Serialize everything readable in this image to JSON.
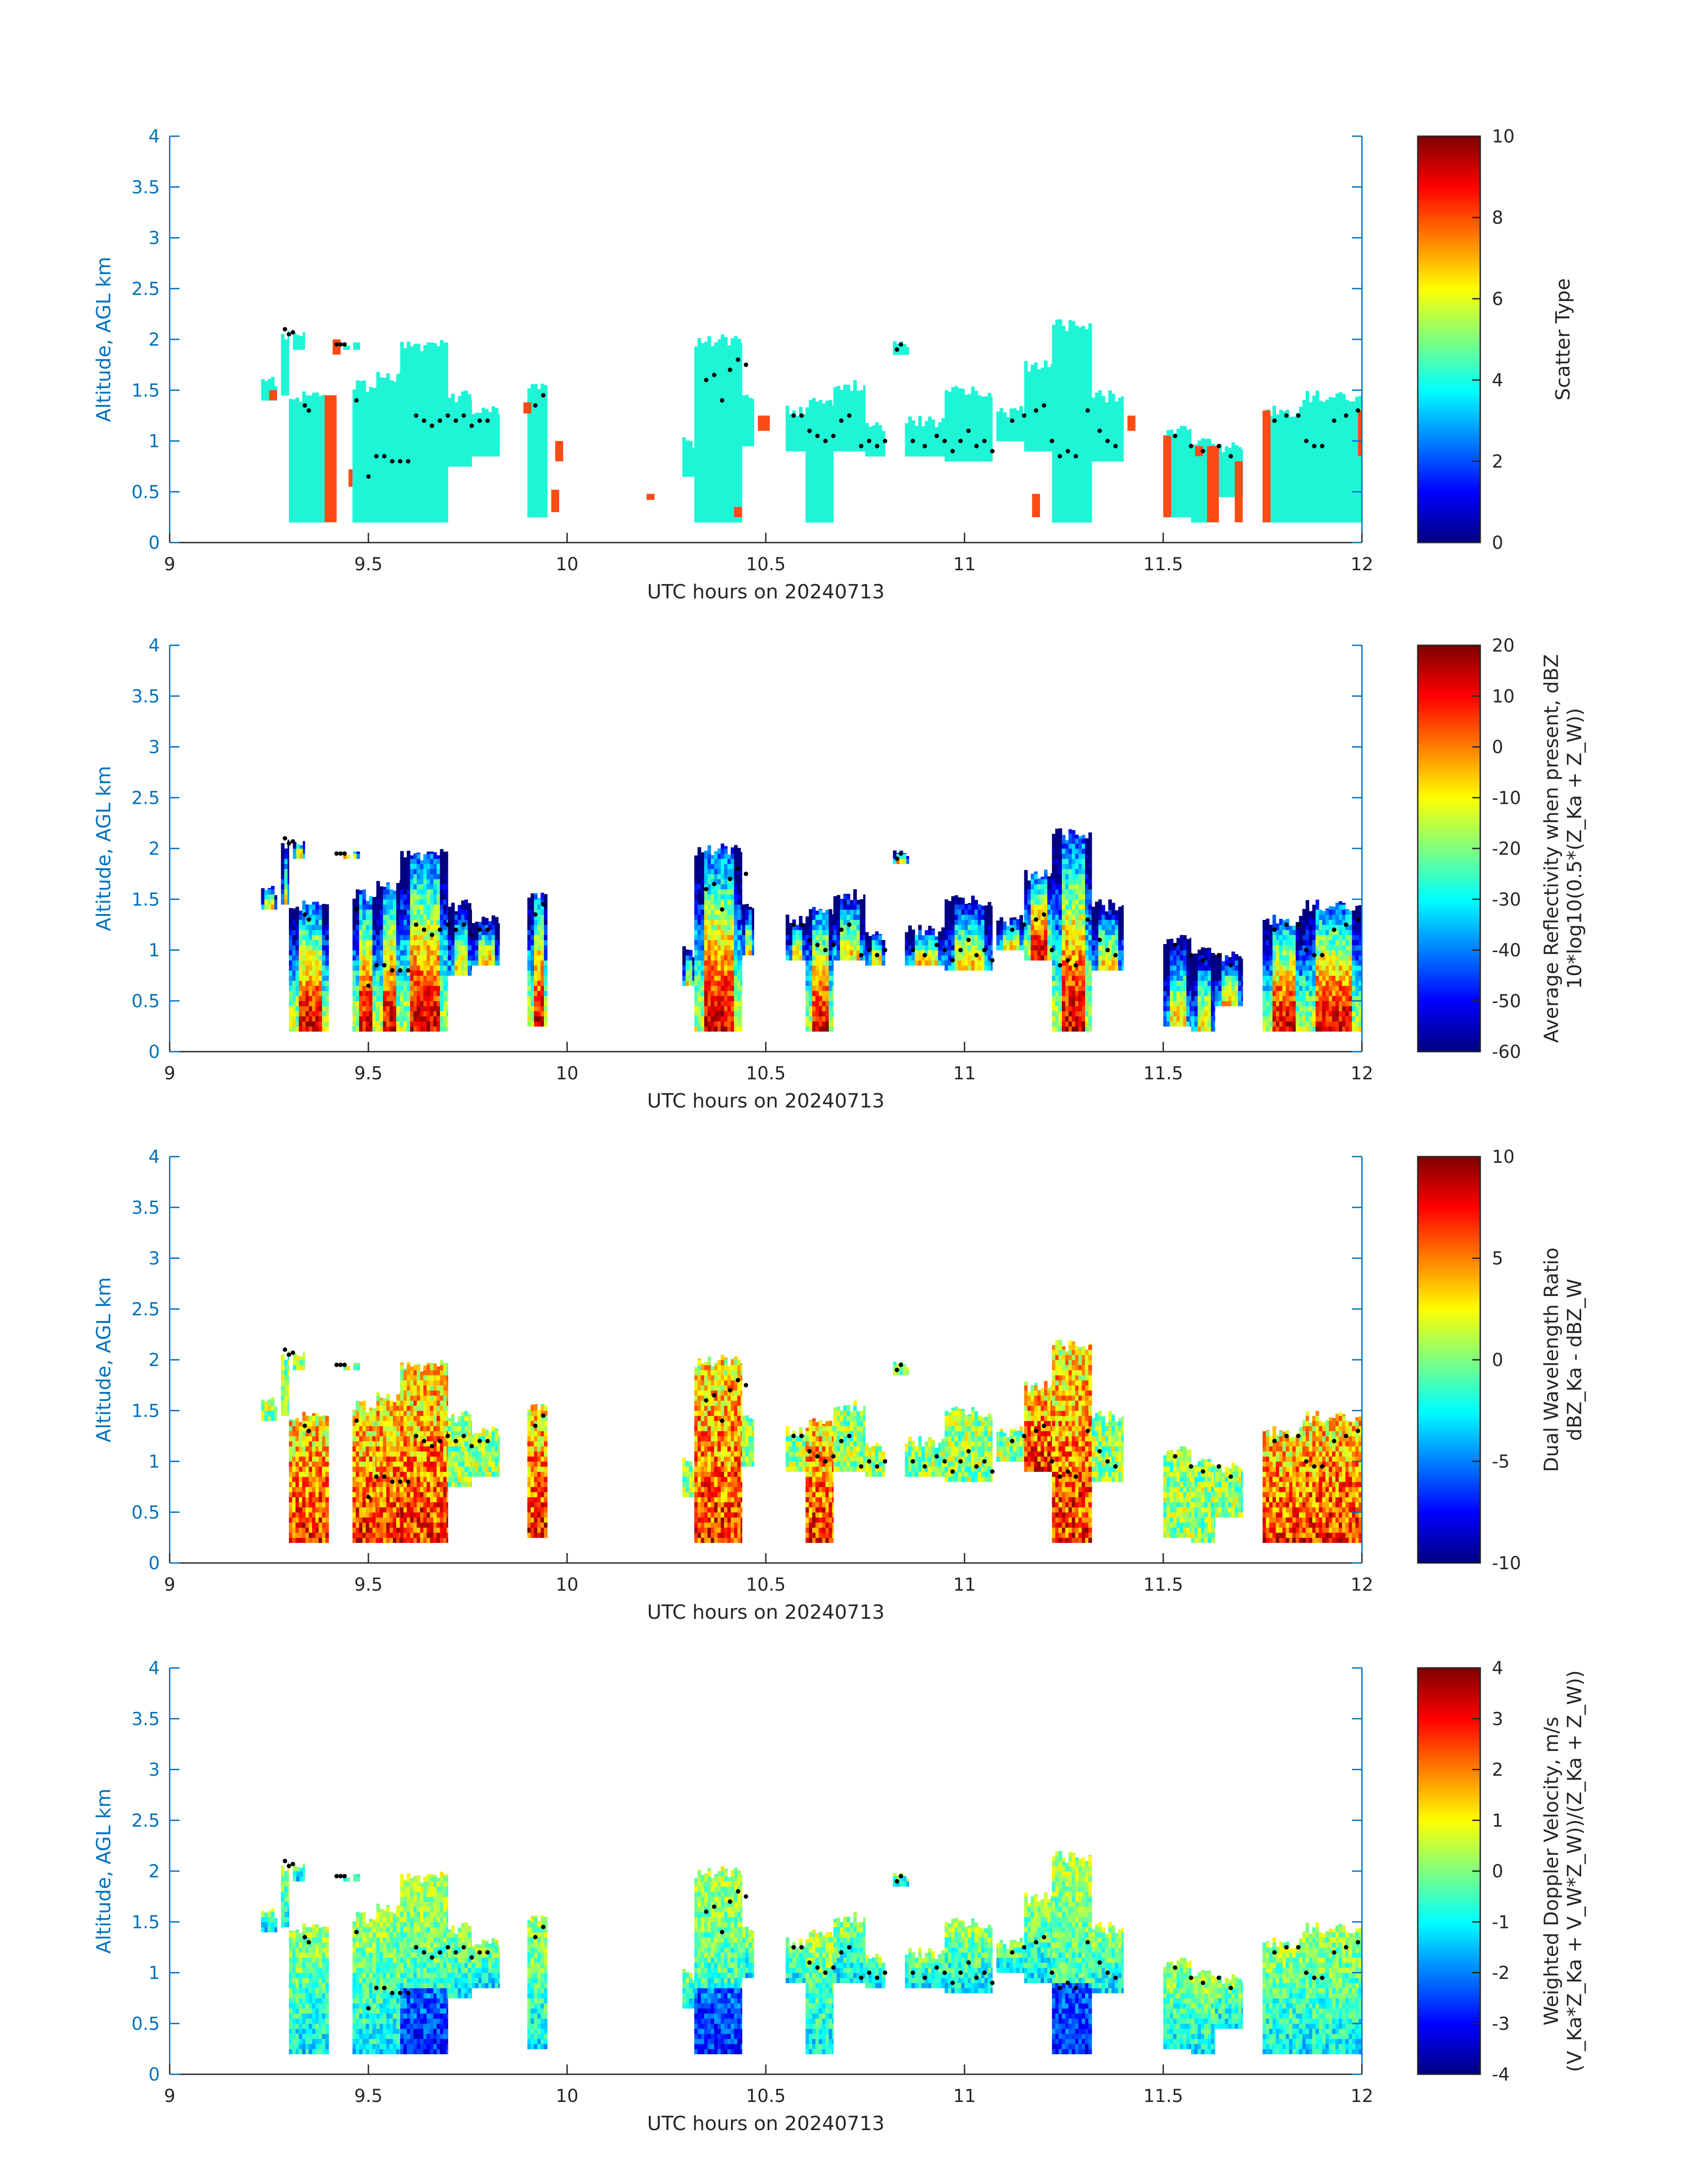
{
  "colors": {
    "axis": "#0072BD",
    "text": "#262626",
    "track": "#000000",
    "scatter_cloud": "#1ef5d6",
    "scatter_precip": "#ff4a14"
  },
  "chart_data": [
    {
      "type": "heatmap",
      "title": "",
      "xlabel": "UTC hours on 20240713",
      "ylabel": "Altitude, AGL km",
      "xlim": [
        9,
        12
      ],
      "ylim": [
        0,
        4
      ],
      "x_ticks": [
        9,
        9.5,
        10,
        10.5,
        11,
        11.5,
        12
      ],
      "x_tick_labels": [
        "9",
        "9.5",
        "10",
        "10.5",
        "11",
        "11.5",
        "12"
      ],
      "y_ticks": [
        0,
        0.5,
        1,
        1.5,
        2,
        2.5,
        3,
        3.5,
        4
      ],
      "y_tick_labels": [
        "0",
        "0.5",
        "1",
        "1.5",
        "2",
        "2.5",
        "3",
        "3.5",
        "4"
      ],
      "colorbar": {
        "label_lines": [
          "Scatter Type"
        ],
        "range": [
          0,
          10
        ],
        "ticks": [
          0,
          2,
          4,
          6,
          8,
          10
        ],
        "tick_labels": [
          "0",
          "2",
          "4",
          "6",
          "8",
          "10"
        ],
        "colormap": "jet"
      },
      "field": "scatter_type",
      "grid": false
    },
    {
      "type": "heatmap",
      "title": "",
      "xlabel": "UTC hours on 20240713",
      "ylabel": "Altitude, AGL km",
      "xlim": [
        9,
        12
      ],
      "ylim": [
        0,
        4
      ],
      "x_ticks": [
        9,
        9.5,
        10,
        10.5,
        11,
        11.5,
        12
      ],
      "x_tick_labels": [
        "9",
        "9.5",
        "10",
        "10.5",
        "11",
        "11.5",
        "12"
      ],
      "y_ticks": [
        0,
        0.5,
        1,
        1.5,
        2,
        2.5,
        3,
        3.5,
        4
      ],
      "y_tick_labels": [
        "0",
        "0.5",
        "1",
        "1.5",
        "2",
        "2.5",
        "3",
        "3.5",
        "4"
      ],
      "colorbar": {
        "label_lines": [
          "Average Reflectivity when present, dBZ",
          "10*log10(0.5*(Z_Ka + Z_W))"
        ],
        "range": [
          -60,
          20
        ],
        "ticks": [
          -60,
          -50,
          -40,
          -30,
          -20,
          -10,
          0,
          10,
          20
        ],
        "tick_labels": [
          "-60",
          "-50",
          "-40",
          "-30",
          "-20",
          "-10",
          "0",
          "10",
          "20"
        ],
        "colormap": "jet"
      },
      "field": "reflectivity",
      "grid": false
    },
    {
      "type": "heatmap",
      "title": "",
      "xlabel": "UTC hours on 20240713",
      "ylabel": "Altitude, AGL km",
      "xlim": [
        9,
        12
      ],
      "ylim": [
        0,
        4
      ],
      "x_ticks": [
        9,
        9.5,
        10,
        10.5,
        11,
        11.5,
        12
      ],
      "x_tick_labels": [
        "9",
        "9.5",
        "10",
        "10.5",
        "11",
        "11.5",
        "12"
      ],
      "y_ticks": [
        0,
        0.5,
        1,
        1.5,
        2,
        2.5,
        3,
        3.5,
        4
      ],
      "y_tick_labels": [
        "0",
        "0.5",
        "1",
        "1.5",
        "2",
        "2.5",
        "3",
        "3.5",
        "4"
      ],
      "colorbar": {
        "label_lines": [
          "Dual Wavelength Ratio",
          "dBZ_Ka - dBZ_W"
        ],
        "range": [
          -10,
          10
        ],
        "ticks": [
          -10,
          -5,
          0,
          5,
          10
        ],
        "tick_labels": [
          "-10",
          "-5",
          "0",
          "5",
          "10"
        ],
        "colormap": "jet"
      },
      "field": "dwr",
      "grid": false
    },
    {
      "type": "heatmap",
      "title": "",
      "xlabel": "UTC hours on 20240713",
      "ylabel": "Altitude, AGL km",
      "xlim": [
        9,
        12
      ],
      "ylim": [
        0,
        4
      ],
      "x_ticks": [
        9,
        9.5,
        10,
        10.5,
        11,
        11.5,
        12
      ],
      "x_tick_labels": [
        "9",
        "9.5",
        "10",
        "10.5",
        "11",
        "11.5",
        "12"
      ],
      "y_ticks": [
        0,
        0.5,
        1,
        1.5,
        2,
        2.5,
        3,
        3.5,
        4
      ],
      "y_tick_labels": [
        "0",
        "0.5",
        "1",
        "1.5",
        "2",
        "2.5",
        "3",
        "3.5",
        "4"
      ],
      "colorbar": {
        "label_lines": [
          "Weighted Doppler Velocity, m/s",
          "(V_Ka*Z_Ka + V_W*Z_W))/(Z_Ka + Z_W))"
        ],
        "range": [
          -4,
          4
        ],
        "ticks": [
          -4,
          -3,
          -2,
          -1,
          0,
          1,
          2,
          3,
          4
        ],
        "tick_labels": [
          "-4",
          "-3",
          "-2",
          "-1",
          "0",
          "1",
          "2",
          "3",
          "4"
        ],
        "colormap": "jet"
      },
      "field": "doppler",
      "grid": false
    }
  ],
  "cloud_segments": [
    {
      "t0": 9.23,
      "t1": 9.27,
      "top": 1.65,
      "base": 1.4
    },
    {
      "t0": 9.28,
      "t1": 9.3,
      "top": 2.1,
      "base": 1.45
    },
    {
      "t0": 9.3,
      "t1": 9.4,
      "top": 1.5,
      "base": 0.2
    },
    {
      "t0": 9.31,
      "t1": 9.34,
      "top": 2.1,
      "base": 1.9
    },
    {
      "t0": 9.42,
      "t1": 9.48,
      "top": 2.0,
      "base": 1.9
    },
    {
      "t0": 9.46,
      "t1": 9.52,
      "top": 1.6,
      "base": 0.2
    },
    {
      "t0": 9.52,
      "t1": 9.58,
      "top": 1.7,
      "base": 0.2
    },
    {
      "t0": 9.58,
      "t1": 9.7,
      "top": 2.0,
      "base": 0.2
    },
    {
      "t0": 9.7,
      "t1": 9.76,
      "top": 1.5,
      "base": 0.75
    },
    {
      "t0": 9.76,
      "t1": 9.83,
      "top": 1.35,
      "base": 0.85
    },
    {
      "t0": 9.9,
      "t1": 9.95,
      "top": 1.62,
      "base": 0.25
    },
    {
      "t0": 10.29,
      "t1": 10.32,
      "top": 1.05,
      "base": 0.65
    },
    {
      "t0": 10.32,
      "t1": 10.44,
      "top": 2.05,
      "base": 0.2
    },
    {
      "t0": 10.44,
      "t1": 10.47,
      "top": 1.5,
      "base": 0.95
    },
    {
      "t0": 10.55,
      "t1": 10.6,
      "top": 1.35,
      "base": 0.9
    },
    {
      "t0": 10.6,
      "t1": 10.67,
      "top": 1.45,
      "base": 0.2
    },
    {
      "t0": 10.67,
      "t1": 10.75,
      "top": 1.6,
      "base": 0.9
    },
    {
      "t0": 10.75,
      "t1": 10.8,
      "top": 1.2,
      "base": 0.85
    },
    {
      "t0": 10.82,
      "t1": 10.86,
      "top": 2.0,
      "base": 1.85
    },
    {
      "t0": 10.85,
      "t1": 10.95,
      "top": 1.25,
      "base": 0.85
    },
    {
      "t0": 10.95,
      "t1": 11.07,
      "top": 1.55,
      "base": 0.8
    },
    {
      "t0": 11.08,
      "t1": 11.15,
      "top": 1.35,
      "base": 1.0
    },
    {
      "t0": 11.15,
      "t1": 11.22,
      "top": 1.8,
      "base": 0.9
    },
    {
      "t0": 11.22,
      "t1": 11.32,
      "top": 2.2,
      "base": 0.2
    },
    {
      "t0": 11.32,
      "t1": 11.4,
      "top": 1.5,
      "base": 0.8
    },
    {
      "t0": 11.5,
      "t1": 11.57,
      "top": 1.15,
      "base": 0.25
    },
    {
      "t0": 11.57,
      "t1": 11.63,
      "top": 1.05,
      "base": 0.2
    },
    {
      "t0": 11.63,
      "t1": 11.7,
      "top": 1.0,
      "base": 0.45
    },
    {
      "t0": 11.75,
      "t1": 11.85,
      "top": 1.35,
      "base": 0.2
    },
    {
      "t0": 11.85,
      "t1": 12.0,
      "top": 1.5,
      "base": 0.2
    }
  ],
  "precip_bars": [
    {
      "t0": 9.25,
      "t1": 9.27,
      "top": 1.5,
      "base": 1.4
    },
    {
      "t0": 9.39,
      "t1": 9.42,
      "top": 1.45,
      "base": 0.2
    },
    {
      "t0": 9.41,
      "t1": 9.43,
      "top": 2.0,
      "base": 1.85
    },
    {
      "t0": 9.45,
      "t1": 9.46,
      "top": 0.72,
      "base": 0.55
    },
    {
      "t0": 9.89,
      "t1": 9.91,
      "top": 1.38,
      "base": 1.27
    },
    {
      "t0": 9.96,
      "t1": 9.98,
      "top": 0.52,
      "base": 0.3
    },
    {
      "t0": 9.97,
      "t1": 9.99,
      "top": 1.0,
      "base": 0.8
    },
    {
      "t0": 10.2,
      "t1": 10.22,
      "top": 0.48,
      "base": 0.42
    },
    {
      "t0": 10.42,
      "t1": 10.44,
      "top": 0.35,
      "base": 0.25
    },
    {
      "t0": 10.48,
      "t1": 10.51,
      "top": 1.25,
      "base": 1.1
    },
    {
      "t0": 11.17,
      "t1": 11.19,
      "top": 0.48,
      "base": 0.25
    },
    {
      "t0": 11.41,
      "t1": 11.43,
      "top": 1.25,
      "base": 1.1
    },
    {
      "t0": 11.5,
      "t1": 11.52,
      "top": 1.05,
      "base": 0.25
    },
    {
      "t0": 11.58,
      "t1": 11.6,
      "top": 0.95,
      "base": 0.85
    },
    {
      "t0": 11.61,
      "t1": 11.64,
      "top": 0.95,
      "base": 0.2
    },
    {
      "t0": 11.68,
      "t1": 11.7,
      "top": 0.8,
      "base": 0.2
    },
    {
      "t0": 11.75,
      "t1": 11.77,
      "top": 1.3,
      "base": 0.2
    },
    {
      "t0": 11.99,
      "t1": 12.0,
      "top": 1.3,
      "base": 0.85
    }
  ],
  "aircraft_track": {
    "t": [
      9.29,
      9.3,
      9.31,
      9.34,
      9.35,
      9.42,
      9.43,
      9.44,
      9.47,
      9.5,
      9.52,
      9.54,
      9.56,
      9.58,
      9.6,
      9.62,
      9.64,
      9.66,
      9.68,
      9.7,
      9.72,
      9.74,
      9.76,
      9.78,
      9.8,
      9.92,
      9.94,
      10.35,
      10.37,
      10.39,
      10.41,
      10.43,
      10.45,
      10.57,
      10.59,
      10.61,
      10.63,
      10.65,
      10.67,
      10.69,
      10.71,
      10.74,
      10.76,
      10.78,
      10.8,
      10.83,
      10.84,
      10.87,
      10.9,
      10.93,
      10.95,
      10.97,
      10.99,
      11.01,
      11.03,
      11.05,
      11.07,
      11.12,
      11.15,
      11.18,
      11.2,
      11.22,
      11.24,
      11.26,
      11.28,
      11.31,
      11.34,
      11.36,
      11.38,
      11.53,
      11.57,
      11.6,
      11.64,
      11.67,
      11.78,
      11.81,
      11.84,
      11.86,
      11.88,
      11.9,
      11.93,
      11.96,
      11.99
    ],
    "alt": [
      2.1,
      2.05,
      2.07,
      1.35,
      1.3,
      1.95,
      1.95,
      1.95,
      1.4,
      0.65,
      0.85,
      0.85,
      0.8,
      0.8,
      0.8,
      1.25,
      1.2,
      1.15,
      1.2,
      1.25,
      1.2,
      1.25,
      1.15,
      1.2,
      1.2,
      1.35,
      1.45,
      1.6,
      1.65,
      1.4,
      1.7,
      1.8,
      1.75,
      1.25,
      1.25,
      1.1,
      1.05,
      1.0,
      1.05,
      1.2,
      1.25,
      0.95,
      1.0,
      0.95,
      1.0,
      1.9,
      1.95,
      1.0,
      0.95,
      1.05,
      1.0,
      0.9,
      1.0,
      1.1,
      0.95,
      1.0,
      0.9,
      1.2,
      1.25,
      1.3,
      1.35,
      1.0,
      0.85,
      0.9,
      0.85,
      1.3,
      1.1,
      1.0,
      0.95,
      1.05,
      0.95,
      0.9,
      0.95,
      0.85,
      1.2,
      1.25,
      1.25,
      1.0,
      0.95,
      0.95,
      1.2,
      1.25,
      1.3
    ]
  }
}
